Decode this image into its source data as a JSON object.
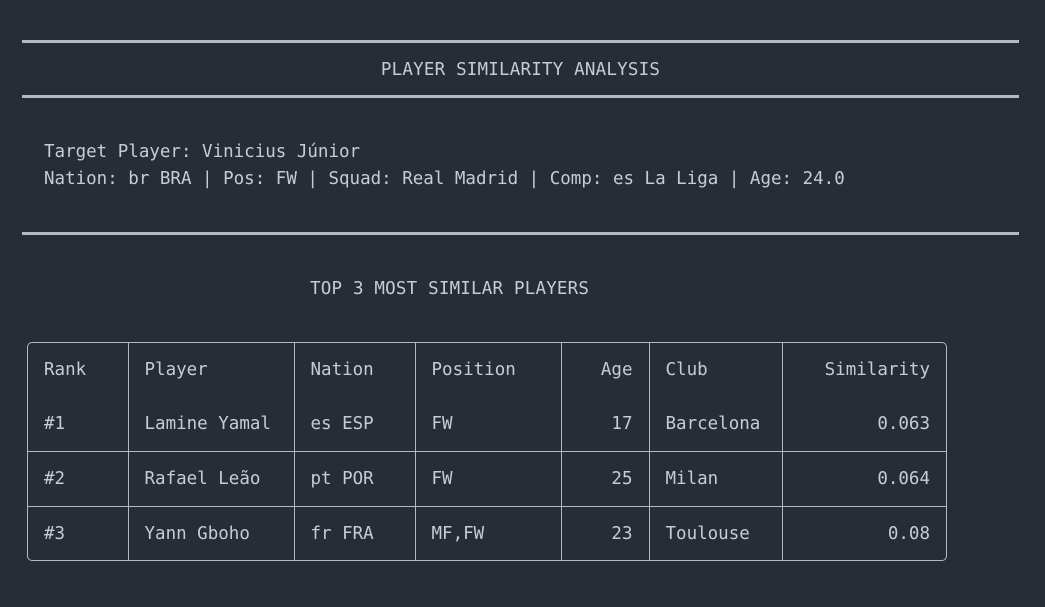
{
  "header": {
    "title": "PLAYER SIMILARITY ANALYSIS"
  },
  "target": {
    "line1": "Target Player: Vinicius Júnior",
    "line2": "Nation: br BRA | Pos: FW | Squad: Real Madrid | Comp: es La Liga | Age: 24.0"
  },
  "results": {
    "title": "TOP 3 MOST SIMILAR PLAYERS",
    "columns": [
      "Rank",
      "Player",
      "Nation",
      "Position",
      "Age",
      "Club",
      "Similarity"
    ],
    "rows": [
      [
        "#1",
        "Lamine Yamal",
        "es ESP",
        "FW",
        "17",
        "Barcelona",
        "0.063"
      ],
      [
        "#2",
        "Rafael Leão",
        "pt POR",
        "FW",
        "25",
        "Milan",
        "0.064"
      ],
      [
        "#3",
        "Yann Gboho",
        "fr FRA",
        "MF,FW",
        "23",
        "Toulouse",
        "0.08"
      ]
    ]
  }
}
